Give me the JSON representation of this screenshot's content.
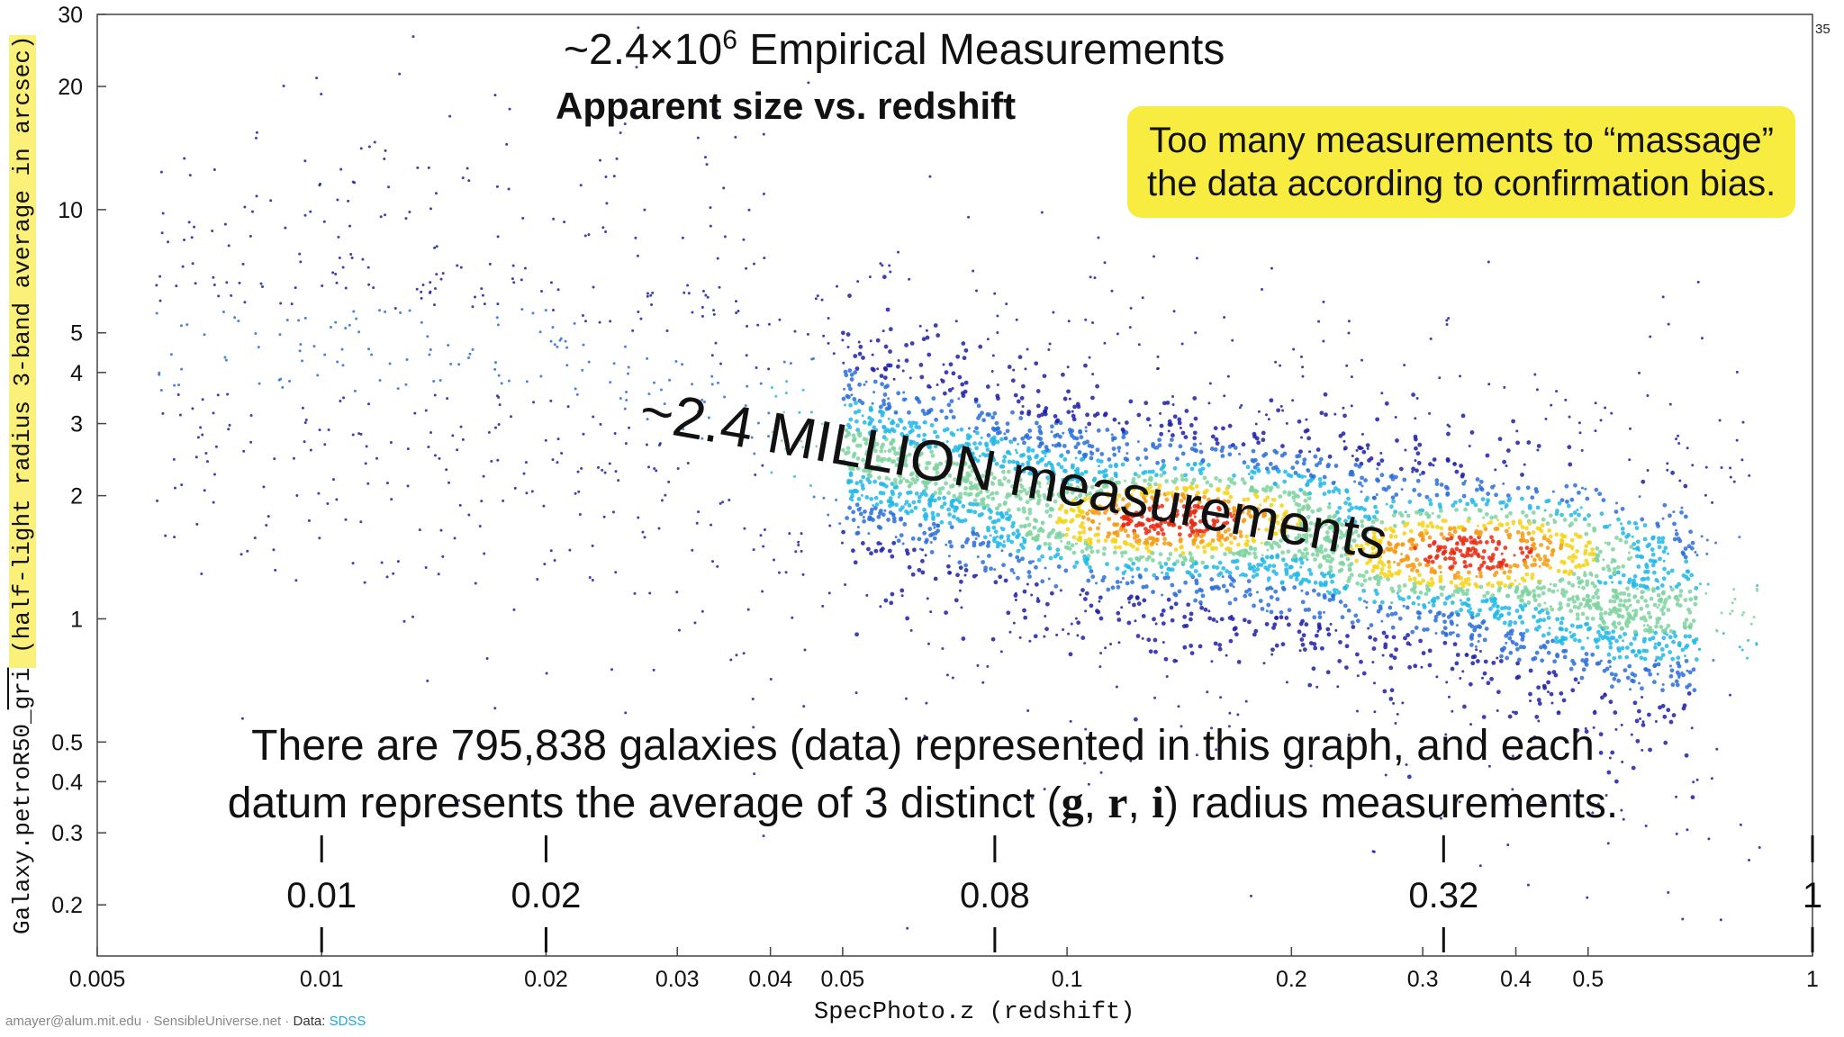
{
  "slide": {
    "title": "~2.4×10",
    "title_exp": "6",
    "title_suffix": " Empirical Measurements",
    "subtitle": "Apparent size vs. redshift",
    "callout_line1": "Too many measurements to “massage”",
    "callout_line2": "the data according to confirmation bias.",
    "big_label": "~2.4 MILLION measurements",
    "summary_part1": "There are 795,838 galaxies (data) represented in this graph, and each",
    "summary_part2a": "datum represents the average of 3 distinct (",
    "band_g": "g",
    "band_r": "r",
    "band_i": "i",
    "summary_part2b": ") radius measurements.",
    "comma": ", ",
    "page_number": "35",
    "credit_prefix": "amayer@alum.mit.edu · SensibleUniverse.net · ",
    "credit_data": "Data: ",
    "credit_source": "SDSS",
    "colors": {
      "callout": "#f7ec3f",
      "label_highlight": "#fbf17a",
      "point_low": "#1f1fa8",
      "point_mid": "#22b8e6",
      "point_high": "#e62a10"
    }
  },
  "chart_data": {
    "type": "scatter",
    "title": "Apparent size vs. redshift",
    "xlabel": "SpecPhoto.z (redshift)",
    "ylabel_prefix": "Galaxy.petroR50_",
    "ylabel_overline": "gri",
    "ylabel_suffix": " (half-light radius 3-band average in arcsec)",
    "xscale": "log",
    "yscale": "log",
    "xlim": [
      0.005,
      1
    ],
    "ylim": [
      0.15,
      30
    ],
    "x_ticks": [
      0.005,
      0.01,
      0.02,
      0.03,
      0.04,
      0.05,
      0.1,
      0.2,
      0.3,
      0.4,
      0.5,
      1
    ],
    "x_tick_labels": [
      "0.005",
      "0.01",
      "0.02",
      "0.03",
      "0.04",
      "0.05",
      "0.1",
      "0.2",
      "0.3",
      "0.4",
      "0.5",
      "1"
    ],
    "y_ticks": [
      0.2,
      0.3,
      0.4,
      0.5,
      1,
      2,
      3,
      4,
      5,
      10,
      20,
      30
    ],
    "y_tick_labels": [
      "0.2",
      "0.3",
      "0.4",
      "0.5",
      "1",
      "2",
      "3",
      "4",
      "5",
      "10",
      "20",
      "30"
    ],
    "n_points": 795838,
    "density_ridge": [
      {
        "z": 0.02,
        "r": 4.5
      },
      {
        "z": 0.05,
        "r": 2.6
      },
      {
        "z": 0.1,
        "r": 1.9
      },
      {
        "z": 0.2,
        "r": 1.6
      },
      {
        "z": 0.32,
        "r": 1.4
      },
      {
        "z": 0.55,
        "r": 1.05
      }
    ],
    "density_peaks": [
      {
        "z": 0.14,
        "r": 1.75
      },
      {
        "z": 0.35,
        "r": 1.45
      }
    ],
    "annotation_markers": [
      {
        "z": 0.01,
        "label": "0.01"
      },
      {
        "z": 0.02,
        "label": "0.02"
      },
      {
        "z": 0.08,
        "label": "0.08"
      },
      {
        "z": 0.32,
        "label": "0.32"
      },
      {
        "z": 1,
        "label": "1"
      }
    ],
    "grid": false,
    "colormap": "jet density"
  }
}
